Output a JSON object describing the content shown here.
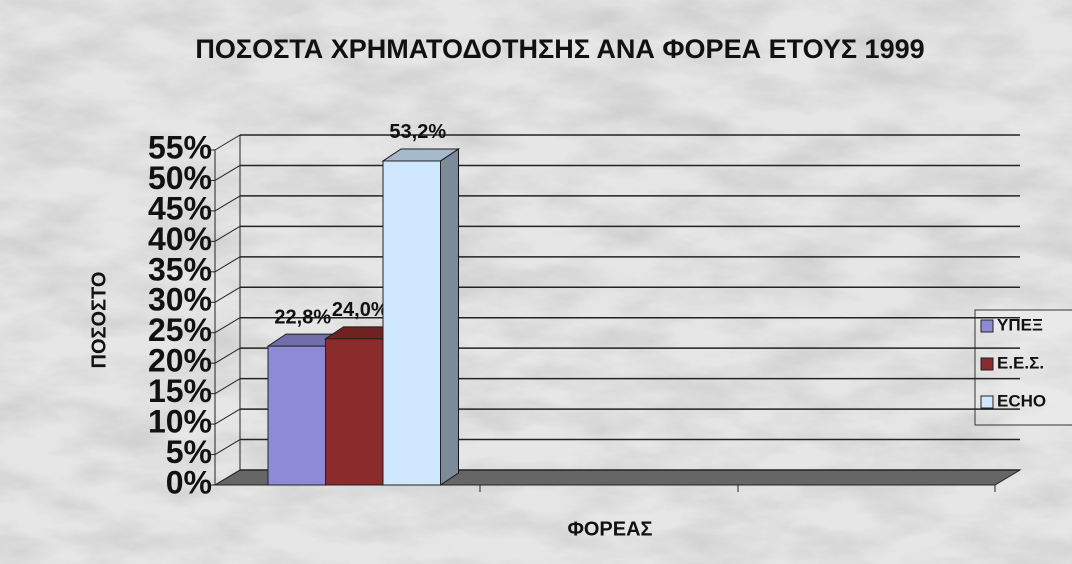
{
  "chart_data": {
    "type": "bar3d",
    "title": "ΠΟΣΟΣΤΑ ΧΡΗΜΑΤΟΔΟΤΗΣΗΣ ΑΝΑ ΦΟΡΕΑ ΕΤΟΥΣ 1999",
    "y_label": "ΠΟΣΟΣΤΟ",
    "x_label": "ΦΟΡΕΑΣ",
    "series": [
      {
        "name": "ΥΠΕΞ",
        "color": "#8f8ad6",
        "values": [
          22.8
        ],
        "value_labels": [
          "22,8%"
        ]
      },
      {
        "name": "Ε.Ε.Σ.",
        "color": "#8b2b2b",
        "values": [
          24.0
        ],
        "value_labels": [
          "24,0%"
        ]
      },
      {
        "name": "ECHO",
        "color": "#cfe8ff",
        "values": [
          53.2
        ],
        "value_labels": [
          "53,2%"
        ]
      }
    ],
    "ylim": [
      0,
      55
    ],
    "yticks": [
      {
        "value": 0,
        "label": "0%"
      },
      {
        "value": 5,
        "label": "5%"
      },
      {
        "value": 10,
        "label": "10%"
      },
      {
        "value": 15,
        "label": "15%"
      },
      {
        "value": 20,
        "label": "20%"
      },
      {
        "value": 25,
        "label": "25%"
      },
      {
        "value": 30,
        "label": "30%"
      },
      {
        "value": 35,
        "label": "35%"
      },
      {
        "value": 40,
        "label": "40%"
      },
      {
        "value": 45,
        "label": "45%"
      },
      {
        "value": 50,
        "label": "50%"
      },
      {
        "value": 55,
        "label": "55%"
      }
    ],
    "grid": true,
    "legend": "right"
  }
}
